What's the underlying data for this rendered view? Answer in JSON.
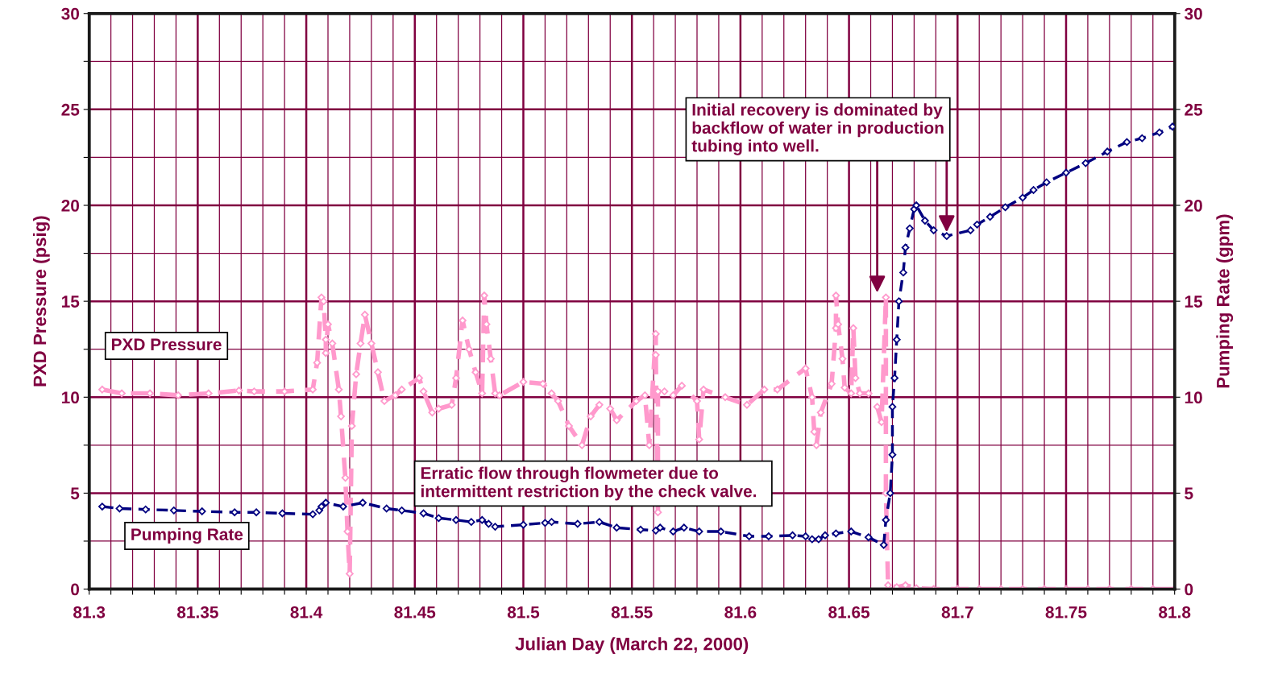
{
  "chart_data": {
    "type": "line",
    "xlabel": "Julian Day (March 22, 2000)",
    "ylabel": "PXD Pressure (psig)",
    "y2label": "Pumping Rate (gpm)",
    "xlim": [
      81.3,
      81.8
    ],
    "ylim": [
      0,
      30
    ],
    "y2lim": [
      0,
      30
    ],
    "xticks": [
      81.3,
      {
        "value": 81.31,
        "label": null
      },
      {
        "value": 81.32,
        "label": null
      },
      {
        "value": 81.33,
        "label": null
      },
      {
        "value": 81.34,
        "label": null
      },
      81.35,
      {
        "value": 81.36,
        "label": null
      },
      {
        "value": 81.37,
        "label": null
      },
      {
        "value": 81.38,
        "label": null
      },
      {
        "value": 81.39,
        "label": null
      },
      81.4,
      {
        "value": 81.41,
        "label": null
      },
      {
        "value": 81.42,
        "label": null
      },
      {
        "value": 81.43,
        "label": null
      },
      {
        "value": 81.44,
        "label": null
      },
      81.45,
      {
        "value": 81.46,
        "label": null
      },
      {
        "value": 81.47,
        "label": null
      },
      {
        "value": 81.48,
        "label": null
      },
      {
        "value": 81.49,
        "label": null
      },
      81.5,
      {
        "value": 81.51,
        "label": null
      },
      {
        "value": 81.52,
        "label": null
      },
      {
        "value": 81.53,
        "label": null
      },
      {
        "value": 81.54,
        "label": null
      },
      81.55,
      {
        "value": 81.56,
        "label": null
      },
      {
        "value": 81.57,
        "label": null
      },
      {
        "value": 81.58,
        "label": null
      },
      {
        "value": 81.59,
        "label": null
      },
      81.6,
      {
        "value": 81.61,
        "label": null
      },
      {
        "value": 81.62,
        "label": null
      },
      {
        "value": 81.63,
        "label": null
      },
      {
        "value": 81.64,
        "label": null
      },
      81.65,
      {
        "value": 81.66,
        "label": null
      },
      {
        "value": 81.67,
        "label": null
      },
      {
        "value": 81.68,
        "label": null
      },
      {
        "value": 81.69,
        "label": null
      },
      81.7,
      {
        "value": 81.71,
        "label": null
      },
      {
        "value": 81.72,
        "label": null
      },
      {
        "value": 81.73,
        "label": null
      },
      {
        "value": 81.74,
        "label": null
      },
      81.75,
      {
        "value": 81.76,
        "label": null
      },
      {
        "value": 81.77,
        "label": null
      },
      {
        "value": 81.78,
        "label": null
      },
      {
        "value": 81.79,
        "label": null
      },
      81.8
    ],
    "yticks": [
      0,
      {
        "value": 2.5,
        "label": null
      },
      5,
      {
        "value": 7.5,
        "label": null
      },
      10,
      {
        "value": 12.5,
        "label": null
      },
      15,
      {
        "value": 17.5,
        "label": null
      },
      20,
      {
        "value": 22.5,
        "label": null
      },
      25,
      {
        "value": 27.5,
        "label": null
      },
      30
    ],
    "y2ticks": [
      0,
      5,
      10,
      15,
      20,
      25,
      30
    ],
    "grid": true,
    "legend": false,
    "marker": "diamond",
    "series": [
      {
        "name": "PXD Pressure",
        "color": "#ff99cc",
        "line_style": "dashed",
        "x": [
          81.306,
          81.315,
          81.328,
          81.341,
          81.355,
          81.369,
          81.376,
          81.39,
          81.403,
          81.405,
          81.407,
          81.408,
          81.409,
          81.409,
          81.41,
          81.412,
          81.415,
          81.416,
          81.418,
          81.419,
          81.42,
          81.421,
          81.423,
          81.425,
          81.427,
          81.43,
          81.433,
          81.436,
          81.441,
          81.444,
          81.452,
          81.454,
          81.458,
          81.461,
          81.467,
          81.469,
          81.472,
          81.475,
          81.478,
          81.481,
          81.482,
          81.483,
          81.485,
          81.487,
          81.489,
          81.5,
          81.509,
          81.513,
          81.516,
          81.521,
          81.527,
          81.531,
          81.535,
          81.54,
          81.543,
          81.552,
          81.556,
          81.558,
          81.561,
          81.561,
          81.562,
          81.562,
          81.565,
          81.569,
          81.573,
          81.58,
          81.581,
          81.583,
          81.593,
          81.603,
          81.611,
          81.617,
          81.63,
          81.633,
          81.634,
          81.635,
          81.637,
          81.642,
          81.644,
          81.644,
          81.645,
          81.647,
          81.648,
          81.651,
          81.652,
          81.653,
          81.655,
          81.659,
          81.663,
          81.665,
          81.667,
          81.667,
          81.668,
          81.672,
          81.676,
          81.681,
          81.689,
          81.7,
          81.71,
          81.72,
          81.73,
          81.74,
          81.75,
          81.76,
          81.77,
          81.78,
          81.79,
          81.8
        ],
        "values": [
          10.4,
          10.2,
          10.2,
          10.1,
          10.2,
          10.35,
          10.3,
          10.3,
          10.4,
          11.8,
          15.2,
          15,
          13,
          12.3,
          13.8,
          12.8,
          10.4,
          9,
          5.8,
          3,
          0.8,
          8.5,
          11.2,
          12.8,
          14.3,
          12.8,
          11.3,
          9.8,
          10.1,
          10.4,
          11,
          10.3,
          9.2,
          9.4,
          9.6,
          11,
          14,
          12.5,
          11.3,
          10.2,
          15.3,
          13.8,
          12,
          10.2,
          10.1,
          10.8,
          10.7,
          10.2,
          9.8,
          8.5,
          7.5,
          9,
          9.6,
          9.4,
          8.8,
          9.8,
          10.1,
          7.5,
          13.3,
          12.2,
          4,
          10.3,
          10.3,
          10.1,
          10.6,
          9.8,
          7.8,
          10.4,
          10,
          9.6,
          10.4,
          10.4,
          11.5,
          10,
          8.2,
          7.5,
          9.2,
          10.7,
          13.6,
          15.3,
          13.8,
          12,
          10.5,
          10.2,
          13.6,
          11,
          10.2,
          10.2,
          9.5,
          8.7,
          15.2,
          5,
          0.2,
          0.1,
          0.2,
          0.05,
          0,
          0,
          0,
          0,
          0,
          0,
          0,
          0,
          0,
          0,
          0,
          0
        ]
      },
      {
        "name": "Pumping Rate",
        "color": "#000080",
        "axis": "y2",
        "line_style": "dashed",
        "x": [
          81.306,
          81.314,
          81.326,
          81.339,
          81.352,
          81.367,
          81.377,
          81.389,
          81.403,
          81.406,
          81.407,
          81.409,
          81.417,
          81.426,
          81.437,
          81.444,
          81.454,
          81.461,
          81.469,
          81.476,
          81.481,
          81.484,
          81.487,
          81.5,
          81.51,
          81.513,
          81.525,
          81.535,
          81.543,
          81.554,
          81.561,
          81.563,
          81.569,
          81.574,
          81.581,
          81.591,
          81.604,
          81.613,
          81.624,
          81.63,
          81.633,
          81.636,
          81.639,
          81.644,
          81.651,
          81.659,
          81.666,
          81.667,
          81.669,
          81.67,
          81.67,
          81.671,
          81.672,
          81.673,
          81.675,
          81.676,
          81.678,
          81.68,
          81.681,
          81.685,
          81.689,
          81.695,
          81.706,
          81.709,
          81.715,
          81.722,
          81.73,
          81.735,
          81.741,
          81.75,
          81.759,
          81.769,
          81.778,
          81.785,
          81.793,
          81.799
        ],
        "values": [
          4.3,
          4.2,
          4.15,
          4.1,
          4.05,
          4,
          4,
          3.95,
          3.9,
          4.1,
          4.3,
          4.5,
          4.3,
          4.5,
          4.2,
          4.1,
          3.95,
          3.7,
          3.6,
          3.5,
          3.6,
          3.4,
          3.25,
          3.35,
          3.45,
          3.5,
          3.4,
          3.5,
          3.2,
          3.1,
          3.05,
          3.2,
          3,
          3.2,
          3,
          3,
          2.75,
          2.75,
          2.8,
          2.75,
          2.6,
          2.6,
          2.8,
          2.9,
          3,
          2.7,
          2.3,
          3.6,
          5,
          7,
          9.5,
          11,
          13,
          15,
          16.5,
          17.8,
          18.8,
          19.8,
          20,
          19.2,
          18.7,
          18.4,
          18.7,
          19,
          19.4,
          19.9,
          20.4,
          20.8,
          21.2,
          21.7,
          22.2,
          22.8,
          23.3,
          23.5,
          23.8,
          24.1
        ]
      }
    ],
    "annotations": [
      {
        "text": "Initial recovery is dominated by\nbackflow of water in production\ntubing into well.",
        "x": 81.695,
        "y": 18.6
      },
      "Erratic flow through flowmeter due to\nintermittent restriction by the check valve."
    ]
  }
}
